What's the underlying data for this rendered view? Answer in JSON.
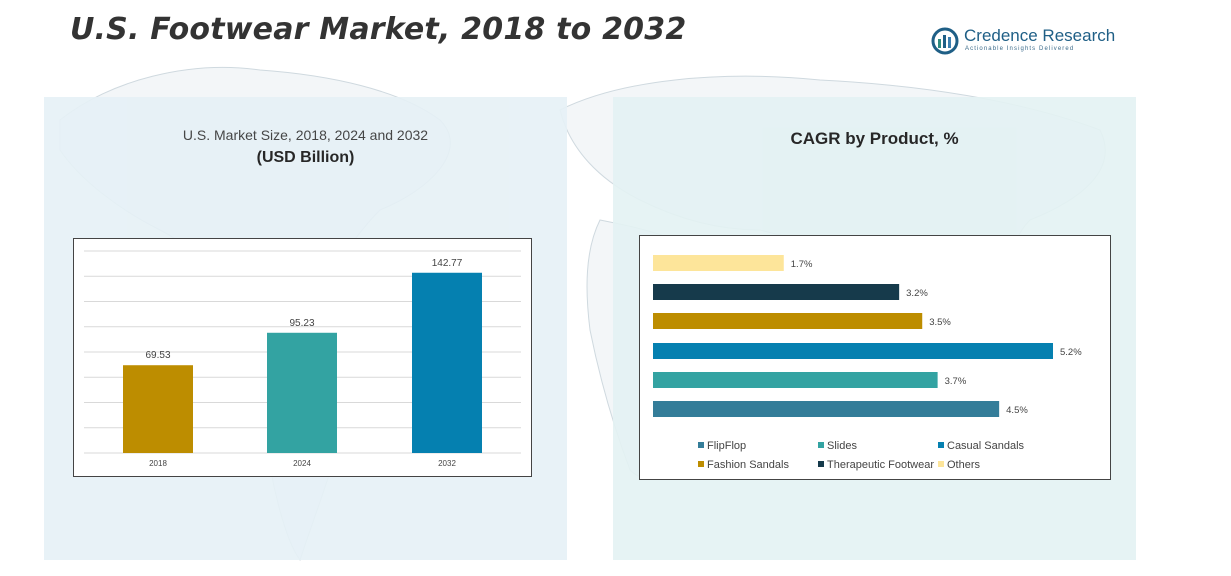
{
  "title": "U.S. Footwear Market, 2018 to 2032",
  "logo": {
    "name": "Credence Research",
    "tagline": "Actionable Insights Delivered"
  },
  "left_panel": {
    "title": "U.S. Market Size, 2018, 2024 and 2032",
    "subtitle": "(USD Billion)"
  },
  "right_panel": {
    "title": "CAGR by Product, %"
  },
  "colors": {
    "gold": "#bd8d00",
    "teal": "#33a3a2",
    "blue": "#0580b0",
    "navy": "#163a4b",
    "cream": "#fde59a",
    "steel": "#347d99"
  },
  "chart_data": [
    {
      "type": "bar",
      "title": "U.S. Market Size, 2018, 2024 and 2032",
      "ylabel": "USD Billion",
      "categories": [
        "2018",
        "2024",
        "2032"
      ],
      "values": [
        69.53,
        95.23,
        142.77
      ],
      "labels": [
        "69.53",
        "95.23",
        "142.77"
      ],
      "colors": [
        "#bd8d00",
        "#33a3a2",
        "#0580b0"
      ],
      "ylim": [
        0,
        160
      ],
      "grid": true
    },
    {
      "type": "bar",
      "orientation": "horizontal",
      "title": "CAGR by Product, %",
      "categories": [
        "Others",
        "Therapeutic Footwear",
        "Fashion Sandals",
        "Casual Sandals",
        "Slides",
        "FlipFlop"
      ],
      "values": [
        1.7,
        3.2,
        3.5,
        5.2,
        3.7,
        4.5
      ],
      "labels": [
        "1.7%",
        "3.2%",
        "3.5%",
        "5.2%",
        "3.7%",
        "4.5%"
      ],
      "colors": [
        "#fde59a",
        "#163a4b",
        "#bd8d00",
        "#0580b0",
        "#33a3a2",
        "#347d99"
      ],
      "xlim": [
        0,
        5.2
      ],
      "legend_position": "bottom",
      "legend": [
        {
          "label": "FlipFlop",
          "color": "#347d99"
        },
        {
          "label": "Slides",
          "color": "#33a3a2"
        },
        {
          "label": "Casual Sandals",
          "color": "#0580b0"
        },
        {
          "label": "Fashion Sandals",
          "color": "#bd8d00"
        },
        {
          "label": "Therapeutic Footwear",
          "color": "#163a4b"
        },
        {
          "label": "Others",
          "color": "#fde59a"
        }
      ]
    }
  ]
}
